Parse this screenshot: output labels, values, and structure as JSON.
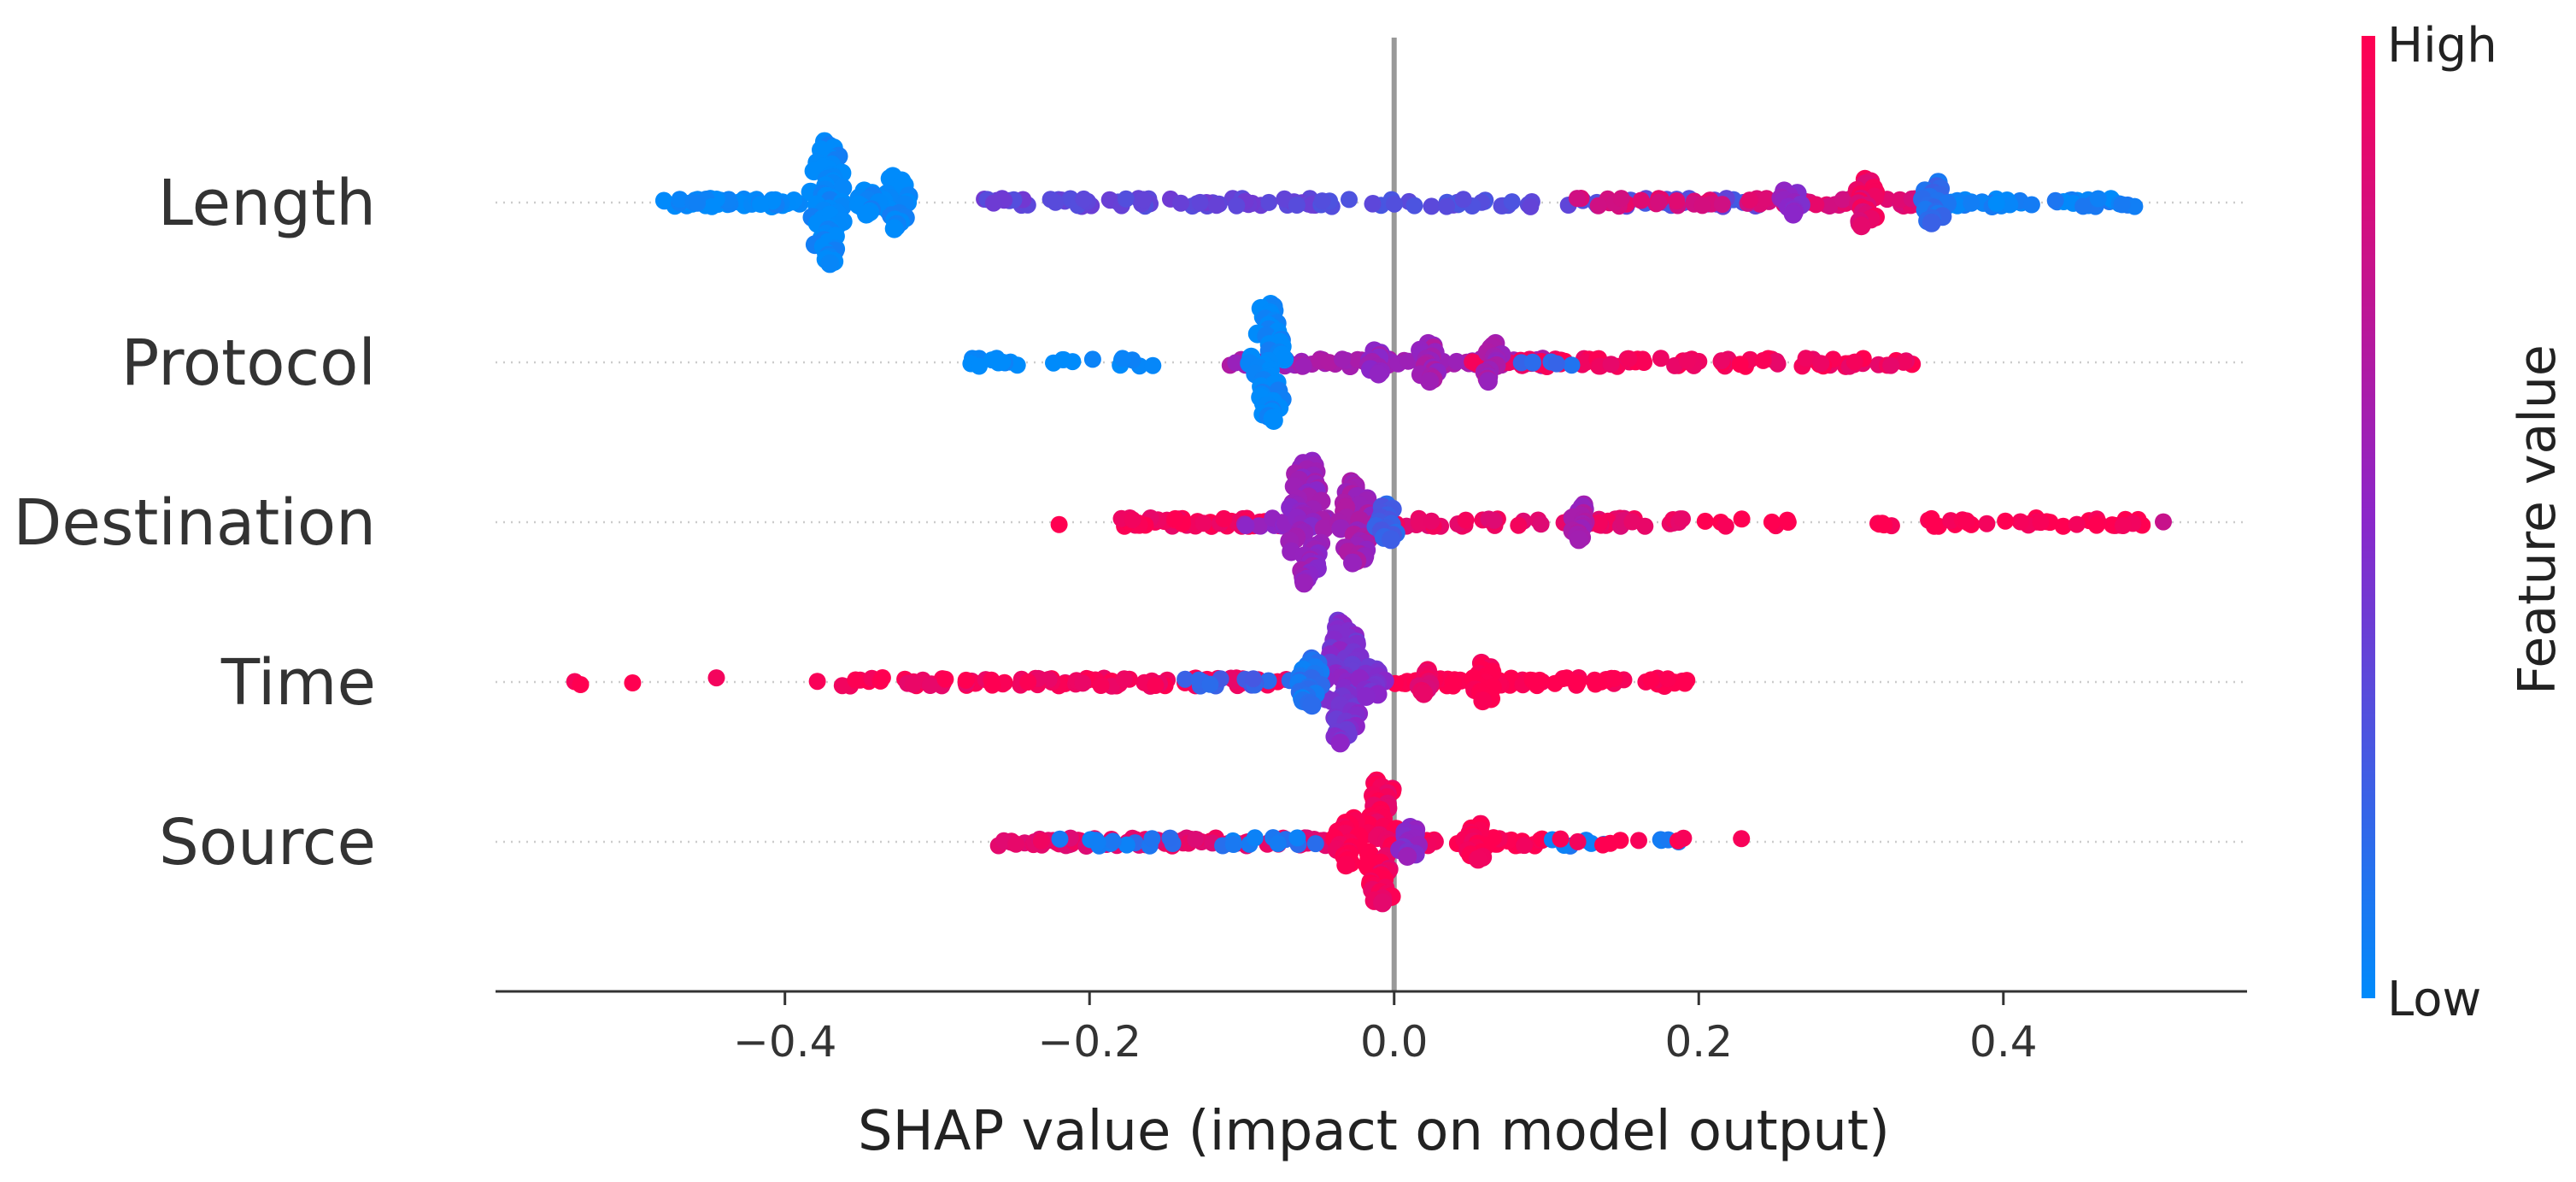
{
  "chart_data": {
    "type": "scatter",
    "subtype": "shap-beeswarm",
    "title": "",
    "xlabel": "SHAP value (impact on model output)",
    "ylabel": "",
    "xlim": [
      -0.59,
      0.56
    ],
    "xticks": [
      -0.4,
      -0.2,
      0.0,
      0.2,
      0.4
    ],
    "xtick_labels": [
      "−0.4",
      "−0.2",
      "0.0",
      "0.2",
      "0.4"
    ],
    "zero_line": 0.0,
    "colorbar": {
      "title": "Feature value",
      "high_label": "High",
      "low_label": "Low",
      "high_color": "#ff0051",
      "mid_color": "#8b26c9",
      "low_color": "#008bfb"
    },
    "features": [
      {
        "name": "Length",
        "range": [
          -0.48,
          0.49
        ],
        "clusters": [
          {
            "x": -0.372,
            "value": 0.0,
            "half_height": 0.42
          },
          {
            "x": -0.327,
            "value": 0.0,
            "half_height": 0.18
          },
          {
            "x": -0.345,
            "value": 0.0,
            "half_height": 0.08
          },
          {
            "x": 0.31,
            "value": 0.9,
            "half_height": 0.16
          },
          {
            "x": 0.355,
            "value": 0.15,
            "half_height": 0.14
          },
          {
            "x": 0.26,
            "value": 0.5,
            "half_height": 0.08
          }
        ],
        "segments": [
          {
            "from": -0.48,
            "to": -0.39,
            "value": 0.0,
            "n": 60
          },
          {
            "from": -0.36,
            "to": -0.32,
            "value": 0.0,
            "n": 12
          },
          {
            "from": -0.27,
            "to": -0.05,
            "value": 0.35,
            "n": 70
          },
          {
            "from": -0.05,
            "to": 0.24,
            "value": 0.3,
            "n": 60
          },
          {
            "from": 0.12,
            "to": 0.36,
            "value": 0.85,
            "n": 60
          },
          {
            "from": 0.36,
            "to": 0.49,
            "value": 0.05,
            "n": 45
          }
        ]
      },
      {
        "name": "Protocol",
        "range": [
          -0.28,
          0.35
        ],
        "clusters": [
          {
            "x": -0.082,
            "value": 0.0,
            "half_height": 0.4
          },
          {
            "x": 0.022,
            "value": 0.6,
            "half_height": 0.13
          },
          {
            "x": 0.065,
            "value": 0.6,
            "half_height": 0.13
          },
          {
            "x": -0.01,
            "value": 0.55,
            "half_height": 0.08
          }
        ],
        "segments": [
          {
            "from": -0.28,
            "to": -0.15,
            "value": 0.0,
            "n": 22
          },
          {
            "from": -0.11,
            "to": -0.06,
            "value": 0.6,
            "n": 14
          },
          {
            "from": -0.06,
            "to": 0.1,
            "value": 0.6,
            "n": 70
          },
          {
            "from": 0.05,
            "to": 0.35,
            "value": 0.95,
            "n": 90
          },
          {
            "from": 0.08,
            "to": 0.12,
            "value": 0.15,
            "n": 6
          }
        ]
      },
      {
        "name": "Destination",
        "range": [
          -0.22,
          0.51
        ],
        "clusters": [
          {
            "x": -0.058,
            "value": 0.55,
            "half_height": 0.42
          },
          {
            "x": -0.025,
            "value": 0.6,
            "half_height": 0.28
          },
          {
            "x": -0.005,
            "value": 0.2,
            "half_height": 0.12
          },
          {
            "x": 0.122,
            "value": 0.6,
            "half_height": 0.12
          }
        ],
        "segments": [
          {
            "from": -0.22,
            "to": -0.21,
            "value": 1.0,
            "n": 1
          },
          {
            "from": -0.18,
            "to": -0.07,
            "value": 0.95,
            "n": 55
          },
          {
            "from": -0.1,
            "to": -0.04,
            "value": 0.55,
            "n": 20
          },
          {
            "from": 0.0,
            "to": 0.19,
            "value": 0.9,
            "n": 50
          },
          {
            "from": 0.2,
            "to": 0.26,
            "value": 1.0,
            "n": 8
          },
          {
            "from": 0.3,
            "to": 0.5,
            "value": 1.0,
            "n": 40
          },
          {
            "from": 0.505,
            "to": 0.51,
            "value": 0.7,
            "n": 1
          }
        ]
      },
      {
        "name": "Time",
        "range": [
          -0.54,
          0.2
        ],
        "clusters": [
          {
            "x": -0.033,
            "value": 0.45,
            "half_height": 0.42
          },
          {
            "x": -0.055,
            "value": 0.1,
            "half_height": 0.16
          },
          {
            "x": -0.015,
            "value": 0.45,
            "half_height": 0.1
          },
          {
            "x": 0.06,
            "value": 1.0,
            "half_height": 0.13
          },
          {
            "x": 0.02,
            "value": 0.9,
            "half_height": 0.08
          }
        ],
        "segments": [
          {
            "from": -0.54,
            "to": -0.53,
            "value": 1.0,
            "n": 2
          },
          {
            "from": -0.5,
            "to": -0.5,
            "value": 1.0,
            "n": 1
          },
          {
            "from": -0.445,
            "to": -0.445,
            "value": 1.0,
            "n": 1
          },
          {
            "from": -0.38,
            "to": -0.32,
            "value": 1.0,
            "n": 10
          },
          {
            "from": -0.32,
            "to": -0.07,
            "value": 0.95,
            "n": 90
          },
          {
            "from": -0.14,
            "to": -0.06,
            "value": 0.2,
            "n": 14
          },
          {
            "from": 0.0,
            "to": 0.2,
            "value": 1.0,
            "n": 75
          }
        ]
      },
      {
        "name": "Source",
        "range": [
          -0.26,
          0.23
        ],
        "clusters": [
          {
            "x": -0.008,
            "value": 0.95,
            "half_height": 0.42
          },
          {
            "x": -0.03,
            "value": 1.0,
            "half_height": 0.16
          },
          {
            "x": 0.055,
            "value": 1.0,
            "half_height": 0.12
          },
          {
            "x": 0.01,
            "value": 0.5,
            "half_height": 0.1
          }
        ],
        "segments": [
          {
            "from": -0.26,
            "to": -0.04,
            "value": 0.9,
            "n": 80
          },
          {
            "from": -0.22,
            "to": -0.05,
            "value": 0.1,
            "n": 24
          },
          {
            "from": 0.0,
            "to": 0.1,
            "value": 1.0,
            "n": 40
          },
          {
            "from": 0.1,
            "to": 0.19,
            "value": 0.1,
            "n": 10
          },
          {
            "from": 0.1,
            "to": 0.19,
            "value": 1.0,
            "n": 8
          },
          {
            "from": 0.228,
            "to": 0.232,
            "value": 1.0,
            "n": 1
          }
        ]
      }
    ]
  }
}
